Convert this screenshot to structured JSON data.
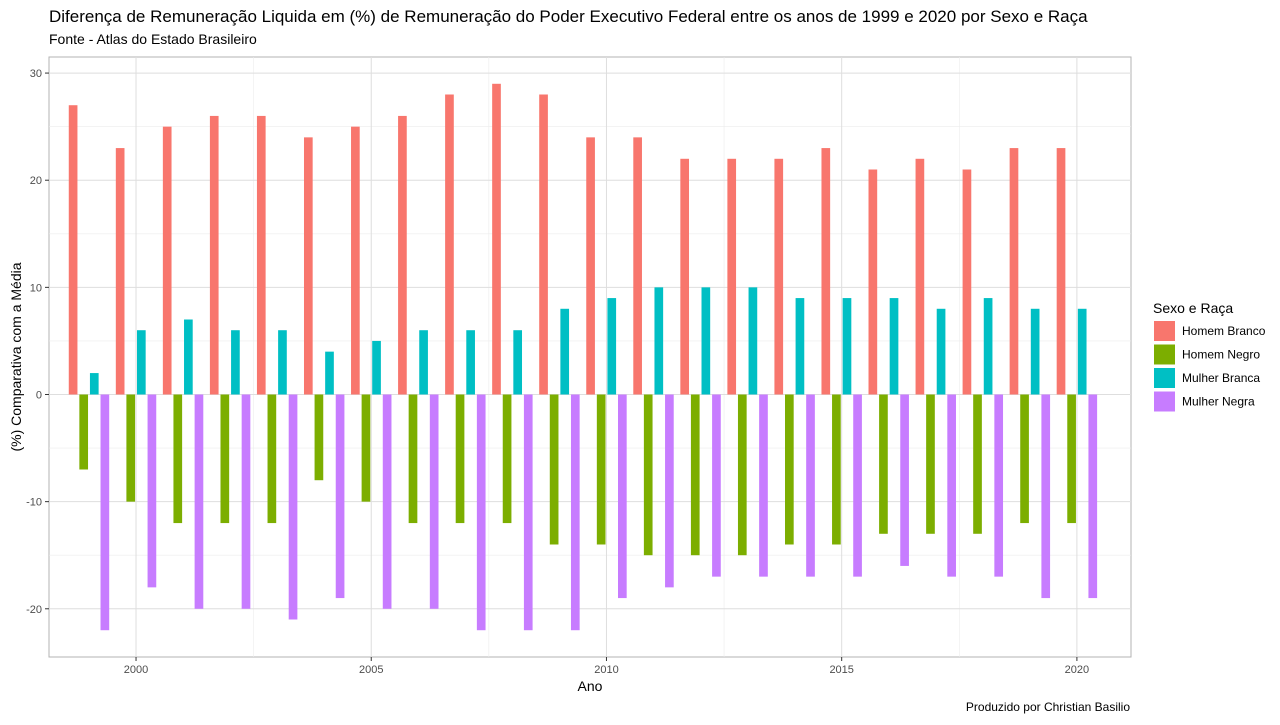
{
  "chart_data": {
    "type": "bar",
    "title": "Diferença de Remuneração Liquida em (%) de Remuneração do Poder Executivo Federal entre os anos de 1999 e 2020 por Sexo e Raça",
    "subtitle": "Fonte - Atlas do Estado Brasileiro",
    "xlabel": "Ano",
    "ylabel": "(%) Comparativa com a Média",
    "caption": "Produzido por Christian Basilio",
    "legend_title": "Sexo e Raça",
    "legend_position": "right",
    "grid": true,
    "xlim": [
      1998.15,
      2021.15
    ],
    "ylim": [
      -24.5,
      31.5
    ],
    "x_ticks": [
      2000,
      2005,
      2010,
      2015,
      2020
    ],
    "x_tick_labels": [
      "2000",
      "2005",
      "2010",
      "2015",
      "2020"
    ],
    "y_ticks": [
      -20,
      -10,
      0,
      10,
      20,
      30
    ],
    "y_tick_labels": [
      "-20",
      "-10",
      "0",
      "10",
      "20",
      "30"
    ],
    "categories": [
      1999,
      2000,
      2001,
      2002,
      2003,
      2004,
      2005,
      2006,
      2007,
      2008,
      2009,
      2010,
      2011,
      2012,
      2013,
      2014,
      2015,
      2016,
      2017,
      2018,
      2019,
      2020
    ],
    "series": [
      {
        "name": "Homem Branco",
        "color": "#F8766D",
        "values": [
          27,
          23,
          25,
          26,
          26,
          24,
          25,
          26,
          28,
          29,
          28,
          24,
          24,
          22,
          22,
          22,
          23,
          21,
          22,
          21,
          23,
          23
        ]
      },
      {
        "name": "Homem Negro",
        "color": "#7CAE00",
        "values": [
          -7,
          -10,
          -12,
          -12,
          -12,
          -8,
          -10,
          -12,
          -12,
          -12,
          -14,
          -14,
          -15,
          -15,
          -15,
          -14,
          -14,
          -13,
          -13,
          -13,
          -12,
          -12
        ]
      },
      {
        "name": "Mulher Branca",
        "color": "#00BFC4",
        "values": [
          2,
          6,
          7,
          6,
          6,
          4,
          5,
          6,
          6,
          6,
          8,
          9,
          10,
          10,
          10,
          9,
          9,
          9,
          8,
          9,
          8,
          8
        ]
      },
      {
        "name": "Mulher Negra",
        "color": "#C77CFF",
        "values": [
          -22,
          -18,
          -20,
          -20,
          -21,
          -19,
          -20,
          -20,
          -22,
          -22,
          -22,
          -19,
          -18,
          -17,
          -17,
          -17,
          -17,
          -16,
          -17,
          -17,
          -19,
          -19
        ]
      }
    ]
  }
}
